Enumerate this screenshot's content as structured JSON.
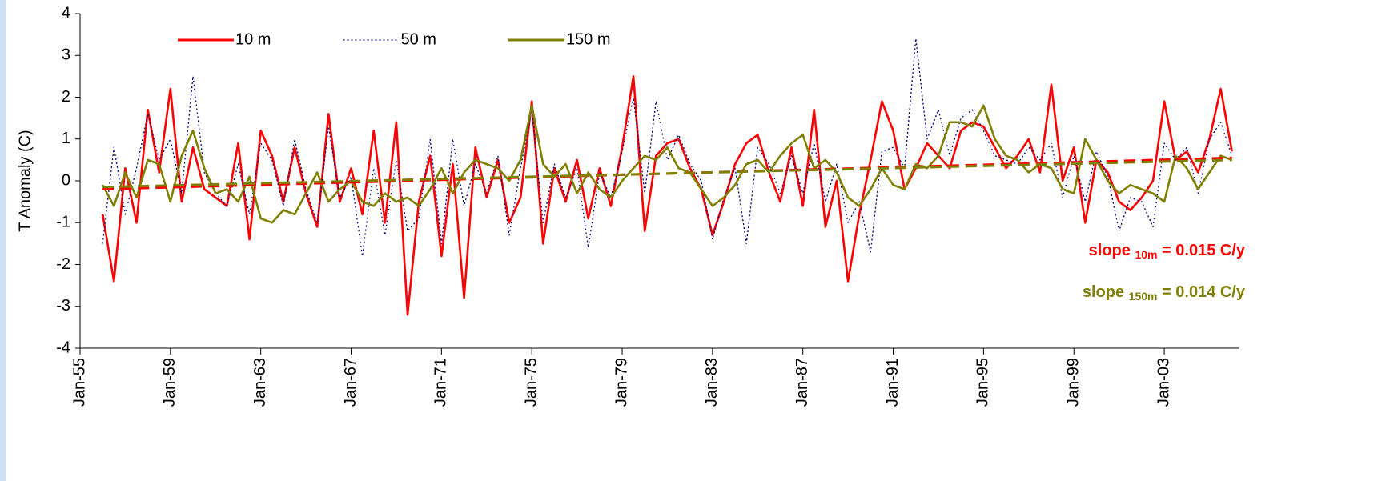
{
  "chart_data": {
    "type": "line",
    "y_label": "T Anomaly (C)",
    "x": [
      1956,
      1956.5,
      1957,
      1957.5,
      1958,
      1958.5,
      1959,
      1959.5,
      1960,
      1960.5,
      1961,
      1961.5,
      1962,
      1962.5,
      1963,
      1963.5,
      1964,
      1964.5,
      1965,
      1965.5,
      1966,
      1966.5,
      1967,
      1967.5,
      1968,
      1968.5,
      1969,
      1969.5,
      1970,
      1970.5,
      1971,
      1971.5,
      1972,
      1972.5,
      1973,
      1973.5,
      1974,
      1974.5,
      1975,
      1975.5,
      1976,
      1976.5,
      1977,
      1977.5,
      1978,
      1978.5,
      1979,
      1979.5,
      1980,
      1980.5,
      1981,
      1981.5,
      1982,
      1982.5,
      1983,
      1983.5,
      1984,
      1984.5,
      1985,
      1985.5,
      1986,
      1986.5,
      1987,
      1987.5,
      1988,
      1988.5,
      1989,
      1989.5,
      1990,
      1990.5,
      1991,
      1991.5,
      1992,
      1992.5,
      1993,
      1993.5,
      1994,
      1994.5,
      1995,
      1995.5,
      1996,
      1996.5,
      1997,
      1997.5,
      1998,
      1998.5,
      1999,
      1999.5,
      2000,
      2000.5,
      2001,
      2001.5,
      2002,
      2002.5,
      2003,
      2003.5,
      2004,
      2004.5,
      2005,
      2005.5,
      2006
    ],
    "series": [
      {
        "name": "10 m",
        "color": "#ff0000",
        "dash": "solid",
        "values": [
          -0.8,
          -2.4,
          0.3,
          -1.0,
          1.7,
          0.2,
          2.2,
          -0.5,
          0.8,
          -0.2,
          -0.4,
          -0.6,
          0.9,
          -1.4,
          1.2,
          0.6,
          -0.5,
          0.8,
          -0.3,
          -1.1,
          1.6,
          -0.5,
          0.3,
          -0.8,
          1.2,
          -1.0,
          1.4,
          -3.2,
          -0.5,
          0.6,
          -1.8,
          0.4,
          -2.8,
          0.8,
          -0.4,
          0.5,
          -1.0,
          -0.4,
          1.9,
          -1.5,
          0.3,
          -0.5,
          0.5,
          -0.9,
          0.3,
          -0.6,
          0.8,
          2.5,
          -1.2,
          0.6,
          0.9,
          1.0,
          0.3,
          -0.2,
          -1.3,
          -0.5,
          0.4,
          0.9,
          1.1,
          0.2,
          -0.5,
          0.8,
          -0.6,
          1.7,
          -1.1,
          0.0,
          -2.4,
          -0.8,
          0.5,
          1.9,
          1.2,
          -0.2,
          0.3,
          0.9,
          0.6,
          0.3,
          1.2,
          1.4,
          1.3,
          0.8,
          0.3,
          0.6,
          1.0,
          0.2,
          2.3,
          0.0,
          0.8,
          -1.0,
          0.5,
          0.2,
          -0.5,
          -0.7,
          -0.4,
          0.0,
          1.9,
          0.5,
          0.7,
          0.2,
          1.0,
          2.2,
          0.7
        ]
      },
      {
        "name": "50 m",
        "color": "#000080",
        "dash": "dotted",
        "values": [
          -1.5,
          0.8,
          -0.8,
          0.3,
          1.6,
          0.5,
          1.0,
          -0.3,
          2.5,
          0.2,
          -0.3,
          -0.6,
          0.4,
          -0.8,
          0.9,
          0.5,
          -0.6,
          1.0,
          -0.2,
          -1.0,
          1.3,
          -0.4,
          0.1,
          -1.8,
          0.3,
          -1.3,
          0.5,
          -1.2,
          -0.9,
          1.0,
          -1.5,
          1.0,
          -0.6,
          0.4,
          -0.3,
          0.6,
          -1.3,
          0.3,
          1.7,
          -1.0,
          0.4,
          -0.4,
          0.3,
          -1.6,
          0.2,
          -0.4,
          0.7,
          2.0,
          -0.3,
          1.9,
          0.5,
          1.1,
          0.4,
          0.0,
          -1.4,
          -0.4,
          0.3,
          -1.5,
          0.8,
          0.4,
          -0.3,
          0.6,
          -0.3,
          0.9,
          -0.5,
          0.4,
          -1.0,
          -0.5,
          -1.7,
          0.7,
          0.8,
          0.3,
          3.4,
          1.0,
          1.7,
          0.6,
          1.5,
          1.7,
          1.2,
          0.6,
          0.5,
          0.4,
          0.8,
          0.5,
          0.9,
          -0.4,
          0.6,
          -0.5,
          0.7,
          0.1,
          -1.2,
          -0.4,
          -0.5,
          -1.1,
          0.9,
          0.5,
          0.8,
          -0.3,
          1.0,
          1.4,
          0.6
        ]
      },
      {
        "name": "150 m",
        "color": "#808000",
        "dash": "solid",
        "values": [
          -0.1,
          -0.6,
          0.2,
          -0.4,
          0.5,
          0.4,
          -0.5,
          0.6,
          1.2,
          0.3,
          -0.3,
          -0.2,
          -0.5,
          0.1,
          -0.9,
          -1.0,
          -0.7,
          -0.8,
          -0.3,
          0.2,
          -0.5,
          -0.2,
          0.0,
          -0.5,
          -0.6,
          -0.3,
          -0.5,
          -0.4,
          -0.6,
          -0.2,
          0.3,
          -0.3,
          0.2,
          0.5,
          0.4,
          0.3,
          0.0,
          0.5,
          1.8,
          0.4,
          0.1,
          0.4,
          -0.3,
          0.2,
          -0.2,
          -0.4,
          0.0,
          0.3,
          0.6,
          0.5,
          0.8,
          0.3,
          0.2,
          -0.2,
          -0.6,
          -0.4,
          -0.1,
          0.4,
          0.5,
          0.2,
          0.6,
          0.9,
          1.1,
          0.3,
          0.5,
          0.2,
          -0.4,
          -0.6,
          -0.2,
          0.3,
          -0.1,
          -0.2,
          0.4,
          0.3,
          0.6,
          1.4,
          1.4,
          1.3,
          1.8,
          1.0,
          0.6,
          0.5,
          0.2,
          0.4,
          0.3,
          -0.2,
          -0.3,
          1.0,
          0.5,
          0.0,
          -0.3,
          -0.1,
          -0.2,
          -0.3,
          -0.5,
          0.6,
          0.3,
          -0.2,
          0.2,
          0.6,
          0.5
        ]
      }
    ],
    "trendlines": [
      {
        "color": "#ff0000",
        "x": [
          1956,
          2006
        ],
        "values": [
          -0.2,
          0.55
        ]
      },
      {
        "color": "#808000",
        "x": [
          1956,
          2006
        ],
        "values": [
          -0.15,
          0.5
        ]
      }
    ],
    "annotations": [
      {
        "text": "slope ",
        "subscript": "10m",
        "suffix": " = 0.015 C/y",
        "color": "#ff0000"
      },
      {
        "text": "slope ",
        "subscript": "150m",
        "suffix": " = 0.014 C/y",
        "color": "#808000"
      }
    ],
    "xlim": [
      1955,
      2006.33
    ],
    "xticks": [
      {
        "value": 1955,
        "label": "Jan-55"
      },
      {
        "value": 1959,
        "label": "Jan-59"
      },
      {
        "value": 1963,
        "label": "Jan-63"
      },
      {
        "value": 1967,
        "label": "Jan-67"
      },
      {
        "value": 1971,
        "label": "Jan-71"
      },
      {
        "value": 1975,
        "label": "Jan-75"
      },
      {
        "value": 1979,
        "label": "Jan-79"
      },
      {
        "value": 1983,
        "label": "Jan-83"
      },
      {
        "value": 1987,
        "label": "Jan-87"
      },
      {
        "value": 1991,
        "label": "Jan-91"
      },
      {
        "value": 1995,
        "label": "Jan-95"
      },
      {
        "value": 1999,
        "label": "Jan-99"
      },
      {
        "value": 2003,
        "label": "Jan-03"
      }
    ],
    "ylim": [
      -4,
      4
    ],
    "yticks": [
      -4,
      -3,
      -2,
      -1,
      0,
      1,
      2,
      3,
      4
    ],
    "legend": "top-left",
    "grid": false
  }
}
